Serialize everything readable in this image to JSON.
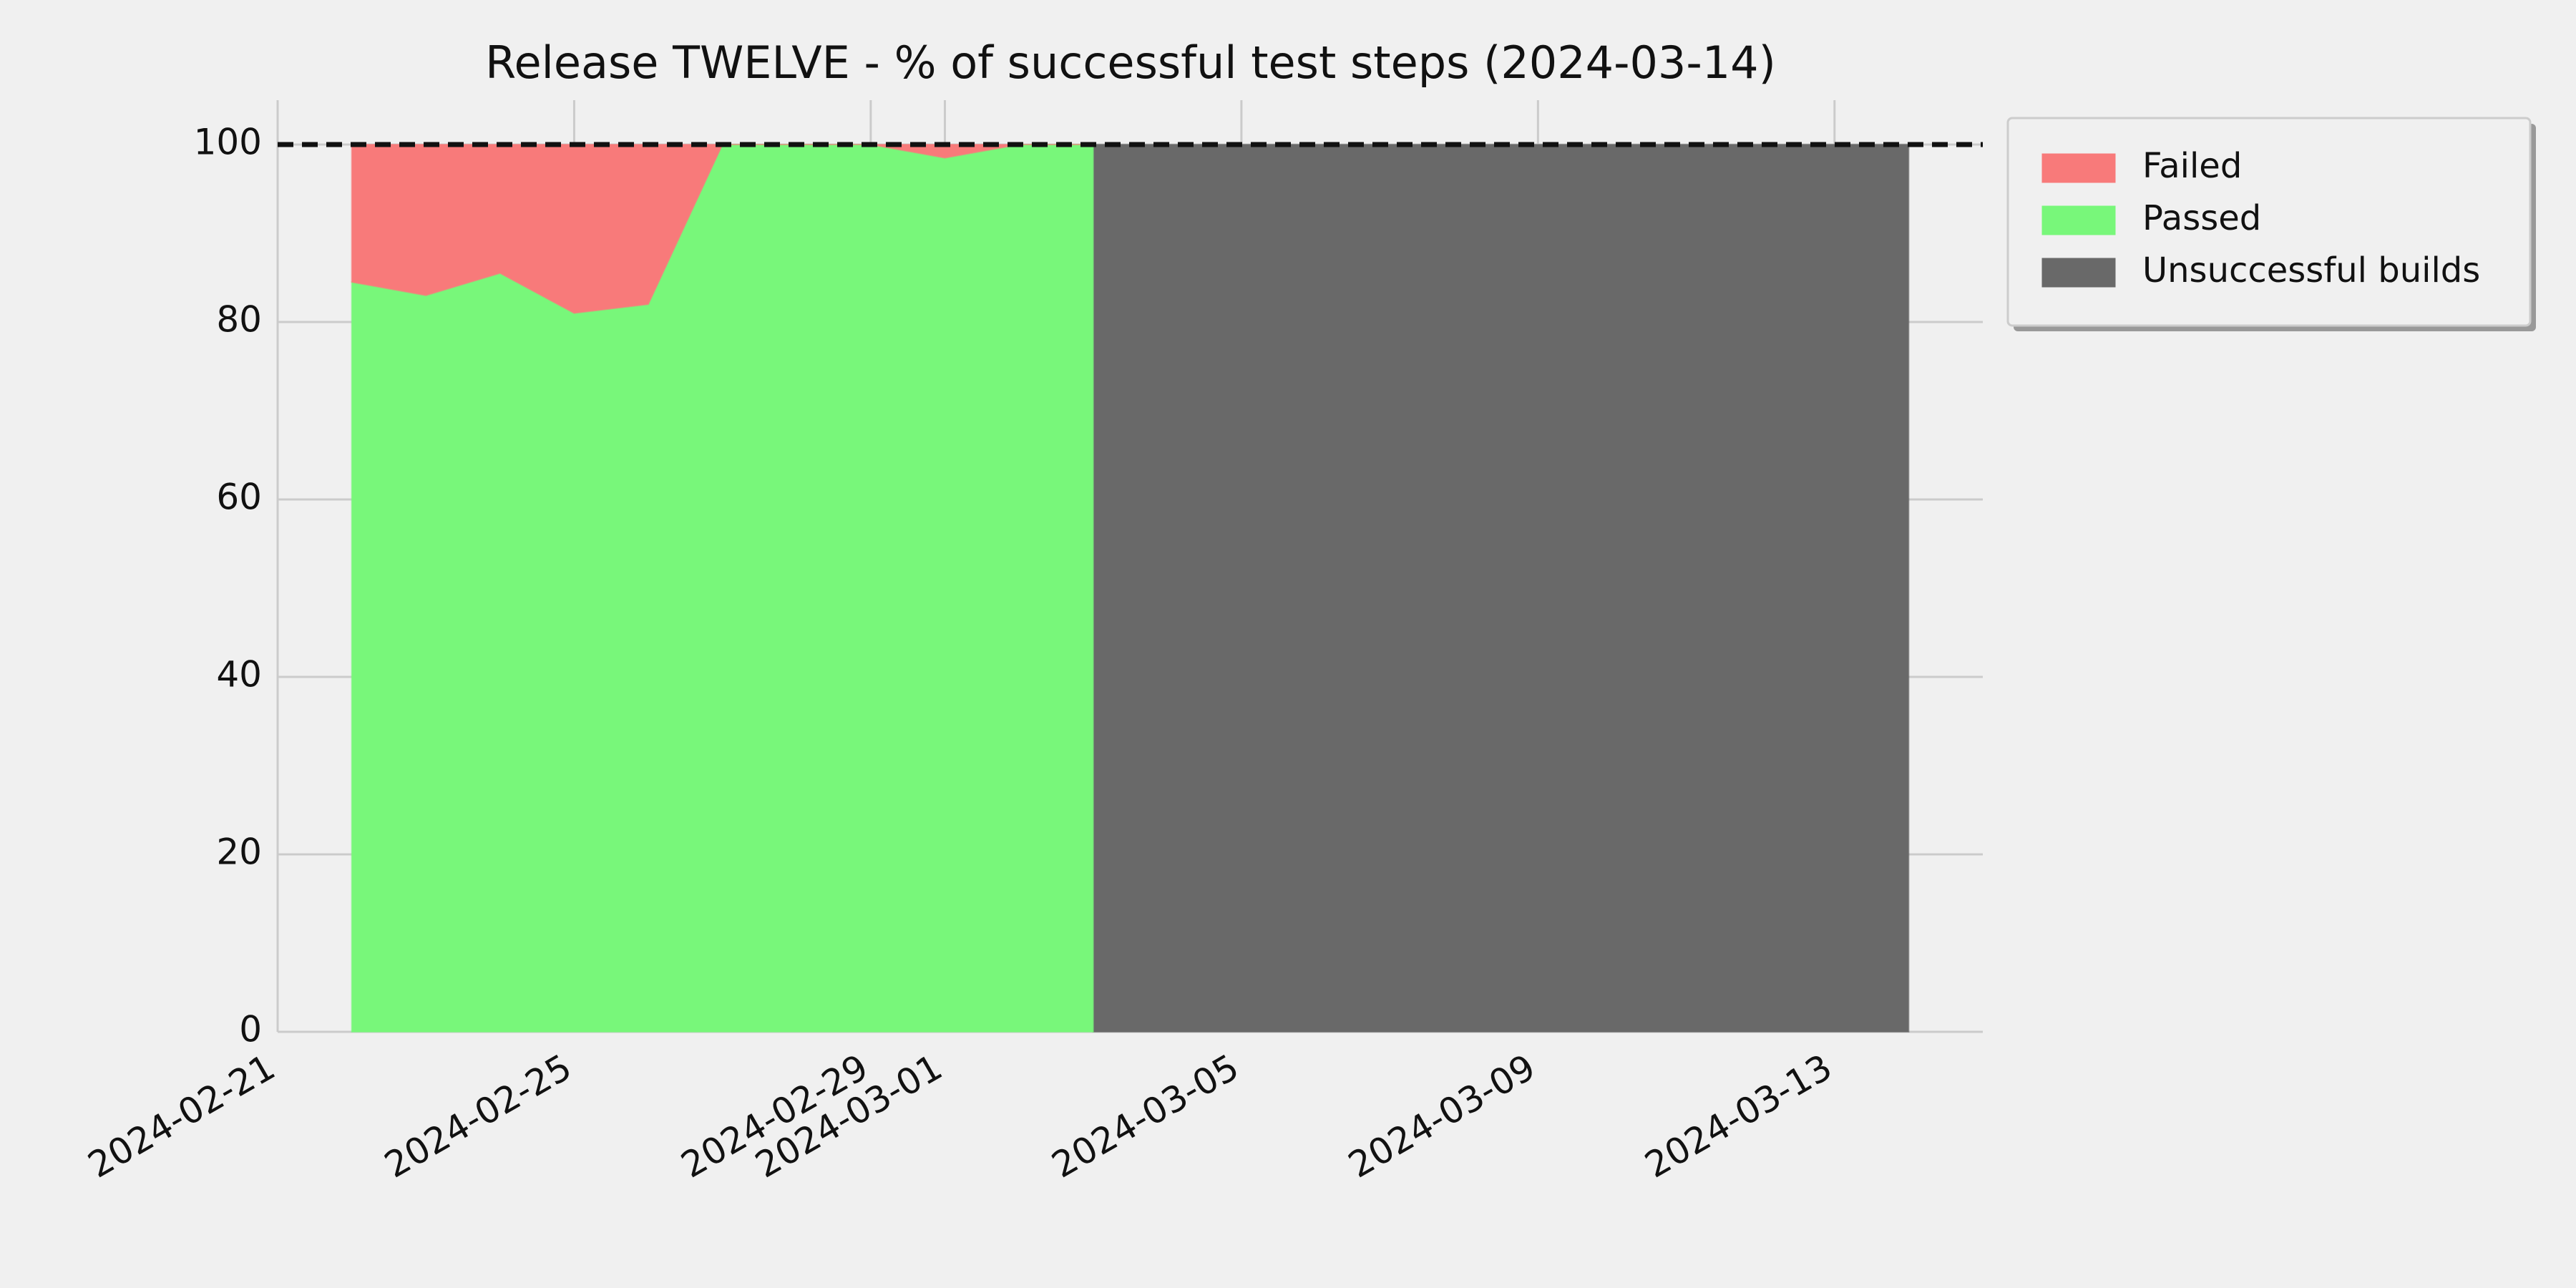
{
  "chart_data": {
    "type": "area",
    "title": "Release TWELVE - % of successful test steps (2024-03-14)",
    "x": [
      "2024-02-22",
      "2024-02-23",
      "2024-02-24",
      "2024-02-25",
      "2024-02-26",
      "2024-02-27",
      "2024-02-28",
      "2024-02-29",
      "2024-03-01",
      "2024-03-02",
      "2024-03-03",
      "2024-03-04",
      "2024-03-05",
      "2024-03-06",
      "2024-03-07",
      "2024-03-08",
      "2024-03-09",
      "2024-03-10",
      "2024-03-11",
      "2024-03-12",
      "2024-03-13",
      "2024-03-14"
    ],
    "series": [
      {
        "name": "Failed",
        "color": "#f87a7a",
        "stack": "tests",
        "values": [
          15.5,
          17,
          14.5,
          19,
          18,
          0,
          0,
          0,
          1.5,
          0,
          0,
          null,
          null,
          null,
          null,
          null,
          null,
          null,
          null,
          null,
          null,
          null
        ]
      },
      {
        "name": "Passed",
        "color": "#78f77a",
        "stack": "tests",
        "values": [
          84.5,
          83,
          85.5,
          81,
          82,
          100,
          100,
          100,
          98.5,
          100,
          100,
          null,
          null,
          null,
          null,
          null,
          null,
          null,
          null,
          null,
          null,
          null
        ]
      },
      {
        "name": "Unsuccessful builds",
        "color": "#696969",
        "values": [
          null,
          null,
          null,
          null,
          null,
          null,
          null,
          null,
          null,
          null,
          100,
          100,
          100,
          100,
          100,
          100,
          100,
          100,
          100,
          100,
          100,
          100
        ]
      }
    ],
    "hline": 100,
    "xlim": [
      "2024-02-21",
      "2024-03-15"
    ],
    "xticks": [
      "2024-02-21",
      "2024-02-25",
      "2024-02-29",
      "2024-03-01",
      "2024-03-05",
      "2024-03-09",
      "2024-03-13"
    ],
    "ylim": [
      0,
      105
    ],
    "yticks": [
      0,
      20,
      40,
      60,
      80,
      100
    ],
    "grid": true,
    "legend": "outside-upper-right"
  }
}
